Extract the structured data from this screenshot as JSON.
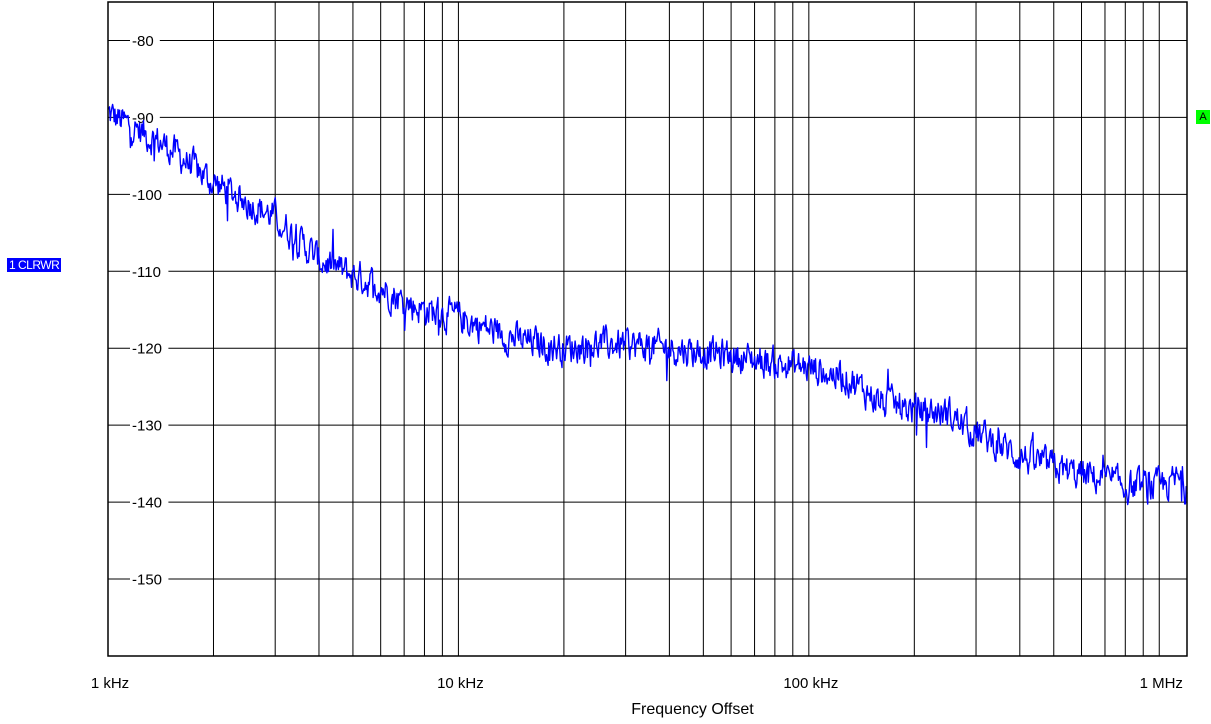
{
  "chart_data": {
    "type": "line",
    "title": "",
    "xlabel": "Frequency Offset",
    "ylabel": "",
    "x_scale": "log",
    "xlim": [
      1000,
      1200000
    ],
    "ylim": [
      -160,
      -75
    ],
    "grid": true,
    "x_tick_values": [
      1000,
      10000,
      100000,
      1000000
    ],
    "x_tick_labels": [
      "1 kHz",
      "10 kHz",
      "100 kHz",
      "1 MHz"
    ],
    "y_ticks": [
      -80,
      -90,
      -100,
      -110,
      -120,
      -130,
      -140,
      -150
    ],
    "y_tick_labels": [
      "-80",
      "-90",
      "-100",
      "-110",
      "-120",
      "-130",
      "-140",
      "-150"
    ],
    "trace_label": "1 CLRWR",
    "marker_label": "A",
    "series": [
      {
        "color": "#0000ff",
        "x": [
          1000,
          1200,
          1500,
          2000,
          2500,
          3000,
          4000,
          5000,
          6000,
          7000,
          8000,
          10000,
          13000,
          15000,
          20000,
          25000,
          30000,
          40000,
          50000,
          60000,
          70000,
          80000,
          100000,
          130000,
          160000,
          200000,
          250000,
          300000,
          400000,
          500000,
          600000,
          700000,
          800000,
          1000000,
          1150000,
          1200000
        ],
        "values": [
          -89.5,
          -91.5,
          -94,
          -98.5,
          -101,
          -103,
          -108.5,
          -110.5,
          -112,
          -114,
          -115,
          -116,
          -118,
          -119,
          -120,
          -119.5,
          -119.5,
          -120,
          -120.5,
          -121,
          -121.5,
          -122,
          -122.5,
          -124,
          -127,
          -128,
          -128.5,
          -131,
          -134,
          -135.5,
          -136.5,
          -137,
          -138,
          -138,
          -137,
          -139
        ]
      }
    ]
  }
}
